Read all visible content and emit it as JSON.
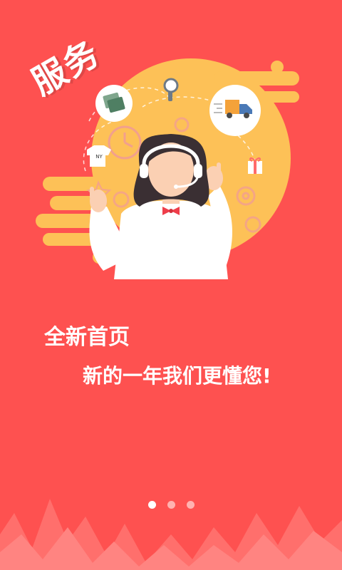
{
  "onboarding": {
    "badge": "服务",
    "headline": "全新首页",
    "subline": "新的一年我们更懂您!",
    "shirt_text": "NY",
    "page_count": 3,
    "active_page": 1
  },
  "colors": {
    "background": "#fe5150",
    "accent_yellow": "#fdc157",
    "dot_active": "#ffffff",
    "dot_inactive": "#ffb2b0"
  },
  "icons": [
    "money-icon",
    "magnifier-icon",
    "truck-icon",
    "clock-icon",
    "tshirt-icon",
    "gift-icon",
    "gear-icon",
    "star-icon"
  ]
}
